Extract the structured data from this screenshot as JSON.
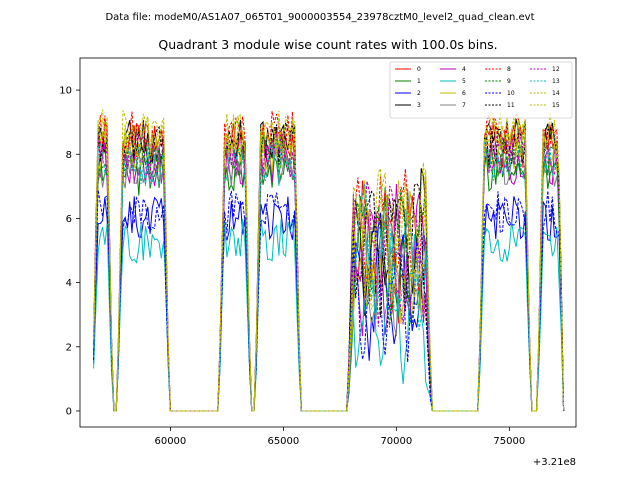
{
  "chart_data": {
    "type": "line",
    "suptitle": "Data file: modeM0/AS1A07_065T01_9000003554_23978cztM0_level2_quad_clean.evt",
    "title": "Quadrant 3 module wise count rates with 100.0s bins.",
    "xlabel": "",
    "ylabel": "",
    "x_offset_label": "+3.21e8",
    "xlim": [
      56000,
      77950
    ],
    "ylim": [
      -0.5,
      11.0
    ],
    "x_ticks": [
      60000,
      65000,
      70000,
      75000
    ],
    "x_tick_labels": [
      "60000",
      "65000",
      "70000",
      "75000"
    ],
    "y_ticks": [
      0,
      2,
      4,
      6,
      8,
      10
    ],
    "y_tick_labels": [
      "0",
      "2",
      "4",
      "6",
      "8",
      "10"
    ],
    "grid": false,
    "legend_placement": "top-right",
    "legend_columns": 4,
    "segments": [
      {
        "x_start": 56600,
        "x_end": 57400,
        "level": "high"
      },
      {
        "x_start": 57700,
        "x_end": 59900,
        "level": "high"
      },
      {
        "x_start": 62200,
        "x_end": 63500,
        "level": "high"
      },
      {
        "x_start": 63800,
        "x_end": 65700,
        "level": "high"
      },
      {
        "x_start": 67900,
        "x_end": 71500,
        "level": "noisy"
      },
      {
        "x_start": 73700,
        "x_end": 75900,
        "level": "high"
      },
      {
        "x_start": 76300,
        "x_end": 77350,
        "level": "high"
      }
    ],
    "series": [
      {
        "name": "0",
        "color": "#ff0000",
        "dashed": false,
        "base": 8.3
      },
      {
        "name": "1",
        "color": "#008000",
        "dashed": false,
        "base": 7.4
      },
      {
        "name": "2",
        "color": "#0000ff",
        "dashed": false,
        "base": 6.0
      },
      {
        "name": "3",
        "color": "#000000",
        "dashed": false,
        "base": 8.4
      },
      {
        "name": "4",
        "color": "#bf00bf",
        "dashed": false,
        "base": 7.7
      },
      {
        "name": "5",
        "color": "#00bfbf",
        "dashed": false,
        "base": 5.3
      },
      {
        "name": "6",
        "color": "#bfbf00",
        "dashed": false,
        "base": 8.1
      },
      {
        "name": "7",
        "color": "#808080",
        "dashed": false,
        "base": 7.6
      },
      {
        "name": "8",
        "color": "#ff0000",
        "dashed": true,
        "base": 8.7
      },
      {
        "name": "9",
        "color": "#008000",
        "dashed": true,
        "base": 7.9
      },
      {
        "name": "10",
        "color": "#0000ff",
        "dashed": true,
        "base": 6.2
      },
      {
        "name": "11",
        "color": "#000000",
        "dashed": true,
        "base": 8.3
      },
      {
        "name": "12",
        "color": "#bf00bf",
        "dashed": true,
        "base": 8.0
      },
      {
        "name": "13",
        "color": "#00bfbf",
        "dashed": true,
        "base": 7.7
      },
      {
        "name": "14",
        "color": "#bfbf00",
        "dashed": true,
        "base": 8.6
      },
      {
        "name": "15",
        "color": "#bfbf00",
        "dashed": true,
        "base": 8.7
      }
    ]
  }
}
